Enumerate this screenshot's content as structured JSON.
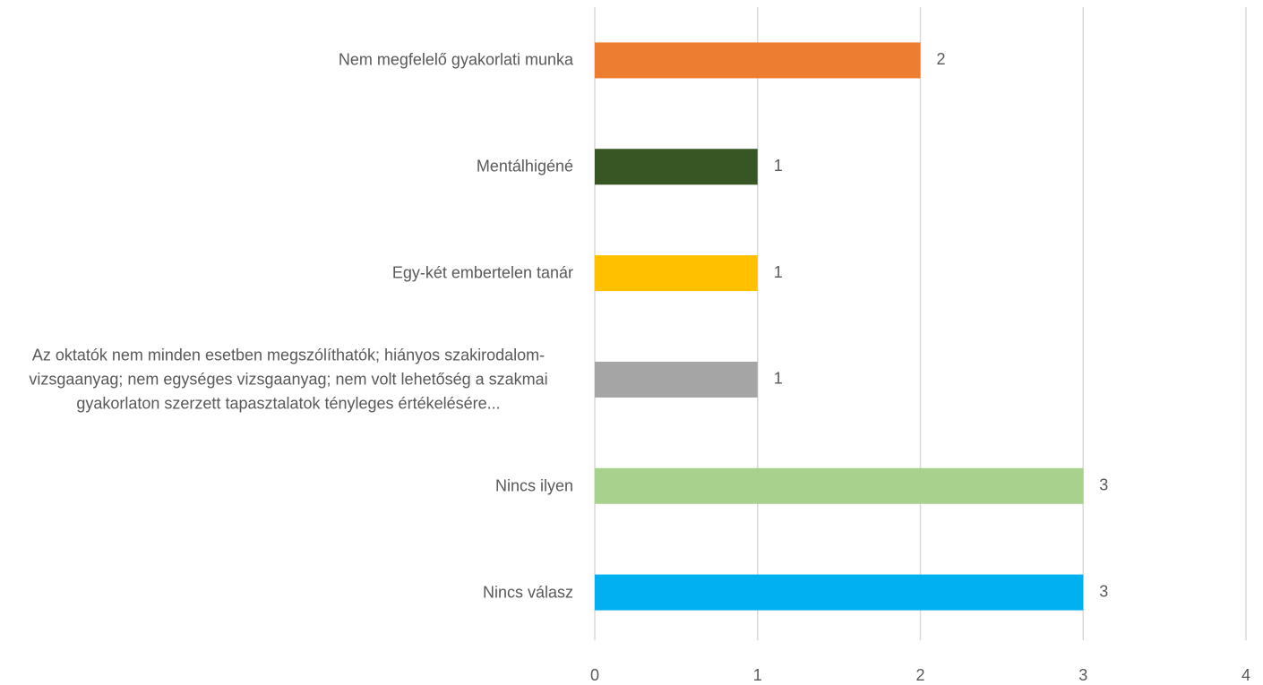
{
  "chart_data": {
    "type": "bar",
    "orientation": "horizontal",
    "categories": [
      "Nem megfelelő gyakorlati munka",
      "Mentálhigéné",
      "Egy-két embertelen tanár",
      "Az oktatók nem minden esetben megszólíthatók; hiányos szakirodalom-vizsgaanyag; nem egységes vizsgaanyag; nem volt lehetőség a szakmai gyakorlaton szerzett tapasztalatok tényleges értékelésére...",
      "Nincs ilyen",
      "Nincs válasz"
    ],
    "values": [
      2,
      1,
      1,
      1,
      3,
      3
    ],
    "colors": [
      "#ED7D31",
      "#375623",
      "#FFC000",
      "#A5A5A5",
      "#A9D18E",
      "#00B0F0"
    ],
    "xlim": [
      0,
      4
    ],
    "xticks": [
      0,
      1,
      2,
      3,
      4
    ],
    "grid": true
  }
}
